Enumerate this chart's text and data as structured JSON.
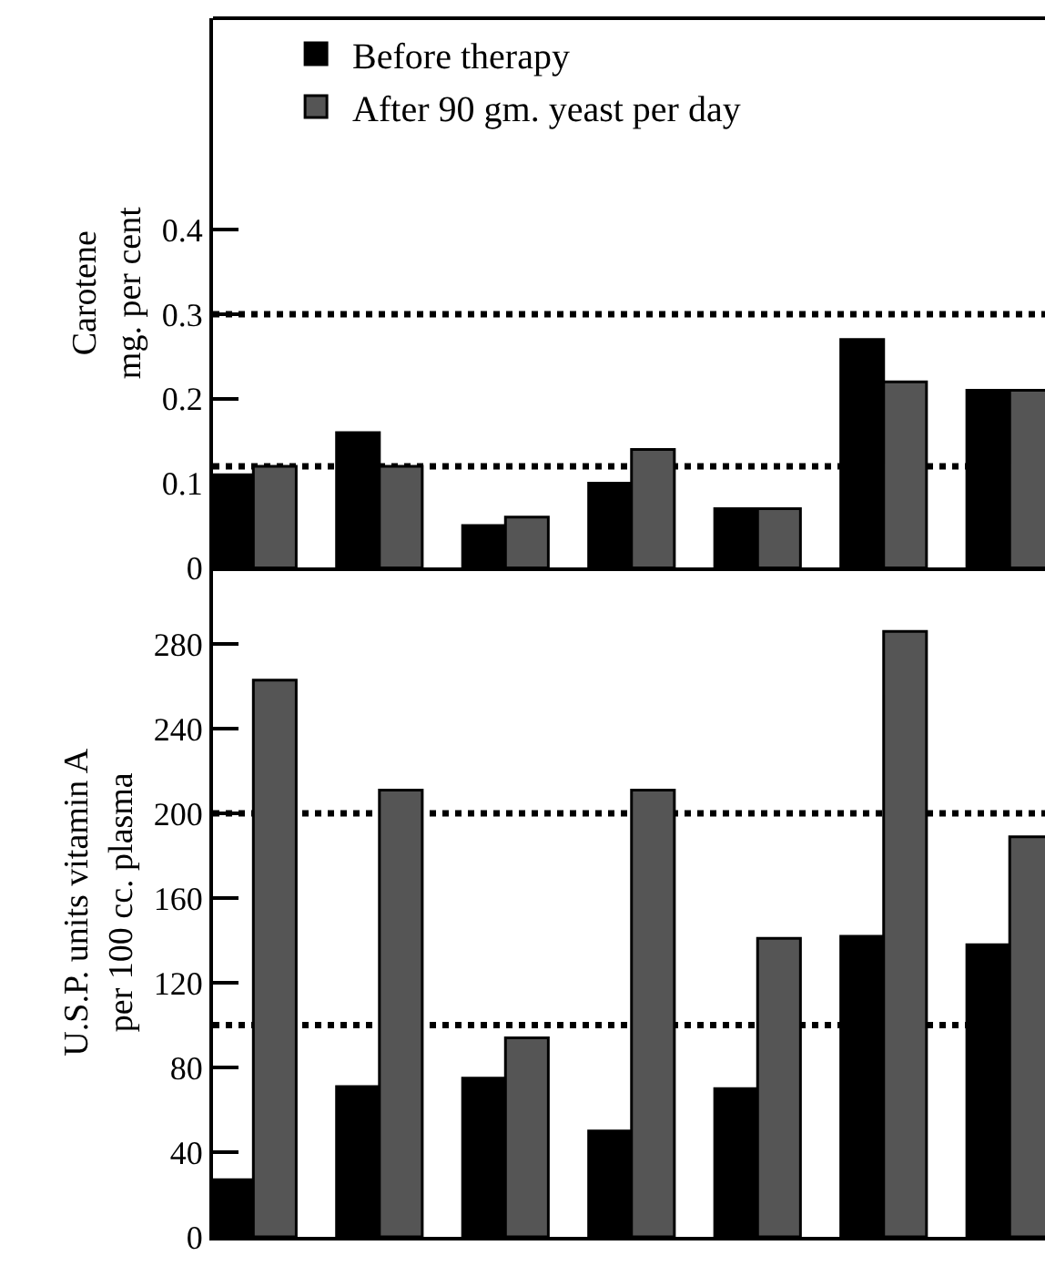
{
  "chart_data": [
    {
      "type": "bar",
      "ylabel": "Carotene\nmg. per cent",
      "categories": [
        null,
        null,
        null,
        null,
        null,
        null,
        null
      ],
      "series": [
        {
          "name": "Before therapy",
          "color": "#000000",
          "values": [
            0.11,
            0.16,
            0.05,
            0.1,
            0.07,
            0.27,
            0.21
          ]
        },
        {
          "name": "After 90 gm. yeast per day",
          "color": "#555555",
          "values": [
            0.12,
            0.12,
            0.06,
            0.14,
            0.07,
            0.22,
            0.21
          ]
        }
      ],
      "ylim": [
        0,
        0.65
      ],
      "yticks": [
        0,
        0.1,
        0.2,
        0.3,
        0.4
      ],
      "grid": false,
      "legend": "top left",
      "tick_labels": "y",
      "ref_lines": [
        {
          "axis": "y",
          "value": 0.3,
          "line_style": "dotted",
          "color": "#000000"
        },
        {
          "axis": "y",
          "value": 0.12,
          "line_style": "dotted",
          "color": "#000000"
        }
      ]
    },
    {
      "type": "bar",
      "ylabel": "U.S.P. units vitamin A\nper 100 cc. plasma",
      "categories": [
        null,
        null,
        null,
        null,
        null,
        null,
        null
      ],
      "series": [
        {
          "color": "#000000",
          "values": [
            27,
            71,
            75,
            50,
            70,
            142,
            138
          ]
        },
        {
          "color": "#555555",
          "values": [
            263,
            211,
            94,
            211,
            141,
            286,
            189
          ]
        }
      ],
      "ylim": [
        0,
        316
      ],
      "yticks": [
        0,
        40,
        80,
        120,
        160,
        200,
        240,
        280
      ],
      "grid": false,
      "tick_labels": "y",
      "ref_lines": [
        {
          "axis": "y",
          "value": 200,
          "line_style": "dotted",
          "color": "#000000"
        },
        {
          "axis": "y",
          "value": 100,
          "line_style": "dotted",
          "color": "#000000"
        }
      ]
    }
  ]
}
